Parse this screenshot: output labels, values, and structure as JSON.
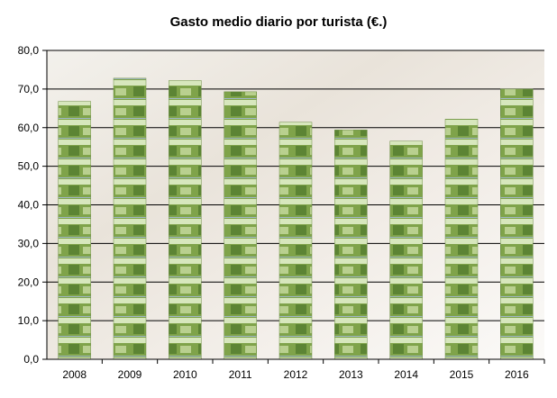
{
  "chart_data": {
    "type": "bar",
    "title": "Gasto medio diario por turista (€.)",
    "xlabel": "",
    "ylabel": "",
    "categories": [
      "2008",
      "2009",
      "2010",
      "2011",
      "2012",
      "2013",
      "2014",
      "2015",
      "2016"
    ],
    "values": [
      66.8,
      72.8,
      72.2,
      69.3,
      61.4,
      59.4,
      56.5,
      62.2,
      70.0
    ],
    "ylim": [
      0,
      80
    ],
    "yticks": [
      "0,0",
      "10,0",
      "20,0",
      "30,0",
      "40,0",
      "50,0",
      "60,0",
      "70,0",
      "80,0"
    ],
    "grid": true,
    "legend": "none",
    "colors": {
      "bar_green": "#7fa34a",
      "bar_light": "#d7e7bd",
      "bar_dark": "#3f6a22",
      "grid": "#000000"
    }
  }
}
